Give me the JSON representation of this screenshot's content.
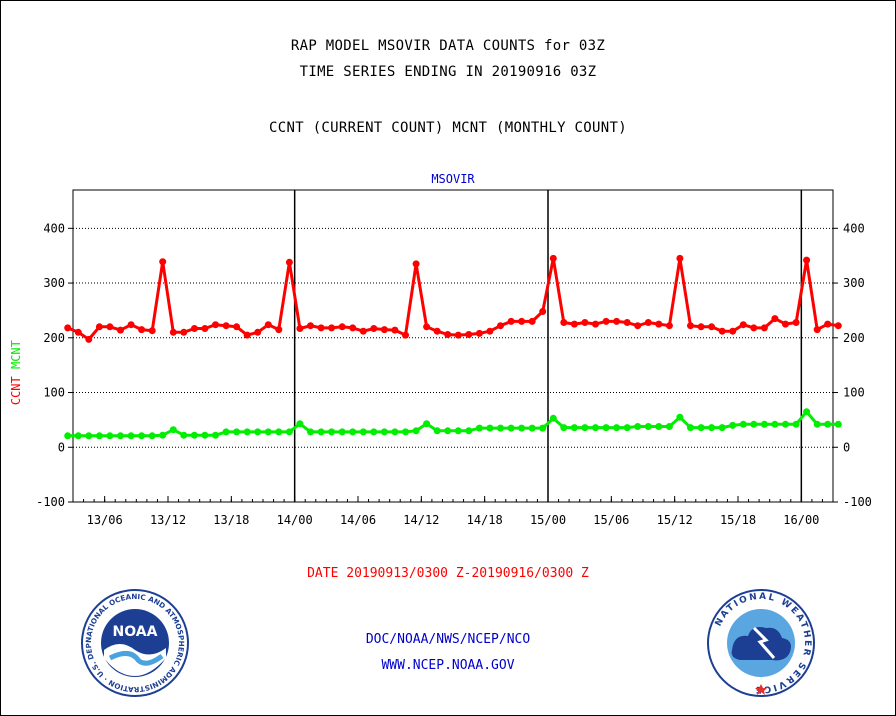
{
  "header": {
    "line1": "RAP MODEL MSOVIR DATA COUNTS for 03Z",
    "line2": "TIME SERIES ENDING IN 20190916 03Z",
    "line3": "CCNT (CURRENT COUNT) MCNT (MONTHLY COUNT)"
  },
  "footer": {
    "date_range": "DATE 20190913/0300 Z-20190916/0300 Z",
    "org": "DOC/NOAA/NWS/NCEP/NCO",
    "url": "WWW.NCEP.NOAA.GOV"
  },
  "logos": {
    "noaa_text": "NOAA",
    "noaa_ring": "NATIONAL OCEANIC AND ATMOSPHERIC ADMINISTRATION · U.S. DEPARTMENT OF COMMERCE ·",
    "nws_ring": "NATIONAL WEATHER SERVICE"
  },
  "colors": {
    "ccnt": "#ff0000",
    "mcnt": "#00ee00",
    "title": "#0000cc",
    "date_range": "#ff0000",
    "links": "#0000cc"
  },
  "chart_data": {
    "type": "line",
    "title": "MSOVIR",
    "ylabel_parts": [
      {
        "text": "CCNT",
        "color": "#ff0000"
      },
      {
        "text": "MCNT",
        "color": "#00ee00"
      }
    ],
    "ylim": [
      -100,
      470
    ],
    "yticks": [
      -100,
      0,
      100,
      200,
      300,
      400
    ],
    "xlim": [
      0,
      72
    ],
    "xticks": [
      {
        "x": 3,
        "label": "13/06"
      },
      {
        "x": 9,
        "label": "13/12"
      },
      {
        "x": 15,
        "label": "13/18"
      },
      {
        "x": 21,
        "label": "14/00"
      },
      {
        "x": 27,
        "label": "14/06"
      },
      {
        "x": 33,
        "label": "14/12"
      },
      {
        "x": 39,
        "label": "14/18"
      },
      {
        "x": 45,
        "label": "15/00"
      },
      {
        "x": 51,
        "label": "15/06"
      },
      {
        "x": 57,
        "label": "15/12"
      },
      {
        "x": 63,
        "label": "15/18"
      },
      {
        "x": 69,
        "label": "16/00"
      }
    ],
    "day_lines": [
      21,
      45,
      69
    ],
    "grid": "horizontal dotted",
    "series": [
      {
        "name": "CCNT",
        "color": "#ff0000",
        "values": [
          218,
          210,
          197,
          220,
          220,
          214,
          224,
          215,
          213,
          339,
          210,
          210,
          217,
          217,
          224,
          222,
          220,
          205,
          210,
          224,
          215,
          338,
          217,
          222,
          218,
          218,
          220,
          218,
          212,
          217,
          215,
          214,
          205,
          335,
          220,
          212,
          206,
          205,
          206,
          208,
          212,
          222,
          230,
          230,
          230,
          248,
          345,
          228,
          225,
          228,
          225,
          230,
          230,
          228,
          222,
          228,
          225,
          222,
          345,
          222,
          220,
          220,
          212,
          212,
          224,
          218,
          218,
          235,
          225,
          228,
          342,
          215,
          225,
          222
        ],
        "x_start": -0.5
      },
      {
        "name": "MCNT",
        "color": "#00ee00",
        "values": [
          21,
          21,
          21,
          21,
          21,
          21,
          21,
          21,
          21,
          22,
          32,
          22,
          22,
          22,
          22,
          28,
          28,
          28,
          28,
          28,
          28,
          28,
          43,
          28,
          28,
          28,
          28,
          28,
          28,
          28,
          28,
          28,
          28,
          30,
          43,
          30,
          30,
          30,
          30,
          35,
          35,
          35,
          35,
          35,
          35,
          35,
          53,
          36,
          36,
          36,
          36,
          36,
          36,
          36,
          38,
          38,
          38,
          38,
          55,
          36,
          36,
          36,
          36,
          40,
          42,
          42,
          42,
          42,
          42,
          42,
          65,
          42,
          42,
          42
        ],
        "x_start": -0.5
      }
    ]
  }
}
